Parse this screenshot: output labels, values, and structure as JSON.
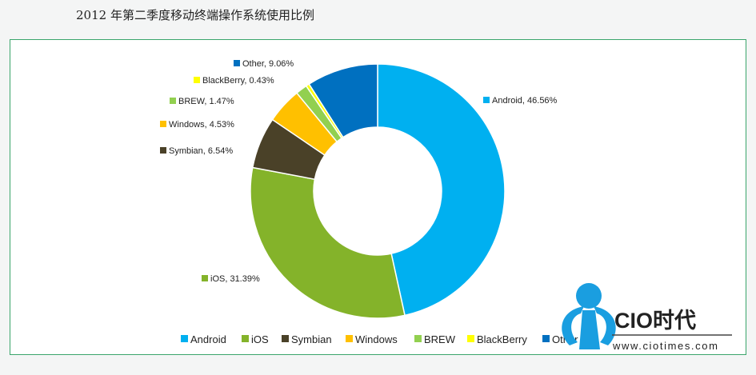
{
  "chart_data": {
    "type": "pie",
    "title": "2012 年第二季度移动终端操作系统使用比例",
    "donut": true,
    "legend_position": "bottom",
    "series": [
      {
        "name": "Android",
        "value": 46.56,
        "label": "Android, 46.56%",
        "color": "#00b0f0"
      },
      {
        "name": "iOS",
        "value": 31.39,
        "label": "iOS, 31.39%",
        "color": "#84b32a"
      },
      {
        "name": "Symbian",
        "value": 6.54,
        "label": "Symbian, 6.54%",
        "color": "#4a4128"
      },
      {
        "name": "Windows",
        "value": 4.53,
        "label": "Windows, 4.53%",
        "color": "#ffc000"
      },
      {
        "name": "BREW",
        "value": 1.47,
        "label": "BREW, 1.47%",
        "color": "#92d050"
      },
      {
        "name": "BlackBerry",
        "value": 0.43,
        "label": "BlackBerry, 0.43%",
        "color": "#ffff00"
      },
      {
        "name": "Other",
        "value": 9.06,
        "label": "Other, 9.06%",
        "color": "#0070c0"
      }
    ]
  },
  "logo": {
    "brand": "CIO时代",
    "url": "www.ciotimes.com",
    "color": "#1a9ee0"
  }
}
